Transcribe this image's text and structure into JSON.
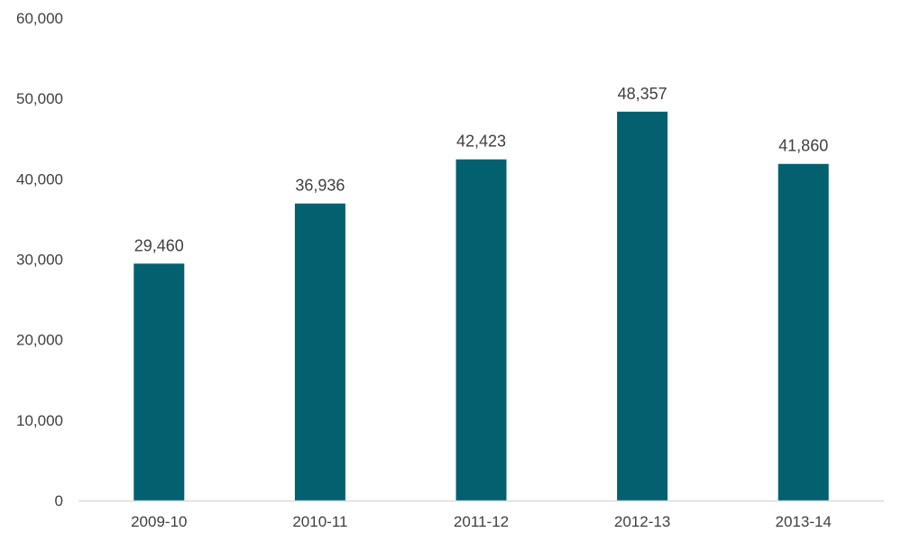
{
  "chart_data": {
    "type": "bar",
    "title": "",
    "xlabel": "",
    "ylabel": "",
    "categories": [
      "2009-10",
      "2010-11",
      "2011-12",
      "2012-13",
      "2013-14"
    ],
    "values": [
      29460,
      36936,
      42423,
      48357,
      41860
    ],
    "data_labels": [
      "29,460",
      "36,936",
      "42,423",
      "48,357",
      "41,860"
    ],
    "ylim": [
      0,
      60000
    ],
    "yticks": [
      0,
      10000,
      20000,
      30000,
      40000,
      50000,
      60000
    ],
    "ytick_labels": [
      "0",
      "10,000",
      "20,000",
      "30,000",
      "40,000",
      "50,000",
      "60,000"
    ],
    "grid": false,
    "legend": "none",
    "bar_color": "#02606f",
    "axis_color": "#d9d9d9"
  }
}
